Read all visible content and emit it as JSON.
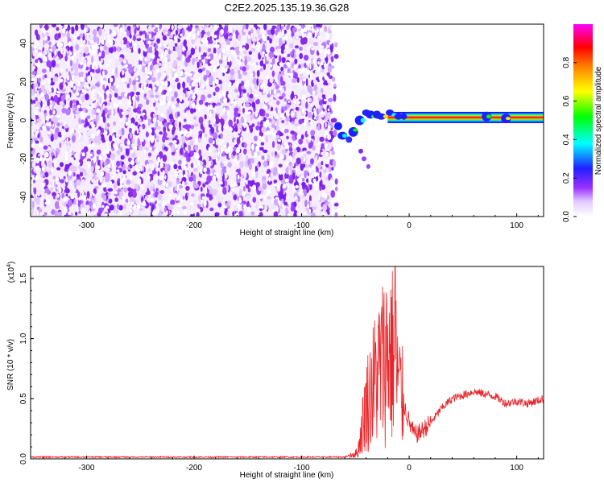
{
  "title": "C2E2.2025.135.19.36.G28",
  "chart_data": [
    {
      "type": "heatmap",
      "title": "C2E2.2025.135.19.36.G28",
      "xlabel": "Height of straight line (km)",
      "ylabel": "Frequency (Hz)",
      "xlim": [
        -352,
        125
      ],
      "ylim": [
        -50,
        50
      ],
      "x_ticks": [
        -300,
        -200,
        -100,
        0,
        100
      ],
      "y_ticks": [
        -40,
        -20,
        0,
        20,
        40
      ],
      "colorbar": {
        "label": "Normalized spectral amplitude",
        "range": [
          0,
          1
        ],
        "ticks": [
          "0.0",
          "0.2",
          "0.4",
          "0.6",
          "0.8"
        ],
        "colors": [
          "#ffffff",
          "#e6ccff",
          "#8a2be2",
          "#0000ff",
          "#00ffff",
          "#00ff00",
          "#ffff00",
          "#ff8000",
          "#ff0000",
          "#ff00ff"
        ]
      },
      "regions": [
        {
          "name": "noise",
          "x_range": [
            -352,
            -72
          ],
          "y_range": [
            -50,
            50
          ],
          "level": 0.1
        },
        {
          "name": "signal-band",
          "x_range": [
            -72,
            125
          ],
          "center_freq_hz": 1.5,
          "level": 0.9
        }
      ]
    },
    {
      "type": "line",
      "xlabel": "Height of straight line (km)",
      "ylabel": "SNR (10 * v/v)",
      "y_multiplier_label": "(x10",
      "y_multiplier_exp": "4",
      "y_multiplier_close": ")",
      "xlim": [
        -352,
        125
      ],
      "ylim": [
        0,
        1.6
      ],
      "x_ticks": [
        -300,
        -200,
        -100,
        0,
        100
      ],
      "y_ticks": [
        "0.0",
        "0.5",
        "1.0",
        "1.5"
      ],
      "color": "#e8262a",
      "keypoints": {
        "x": [
          -352,
          -60,
          -48,
          -40,
          -30,
          -20,
          -14,
          -8,
          0,
          5,
          10,
          20,
          30,
          40,
          60,
          80,
          90,
          100,
          110,
          125
        ],
        "y": [
          0.015,
          0.015,
          0.05,
          0.45,
          0.7,
          0.9,
          0.85,
          0.55,
          0.3,
          0.2,
          0.22,
          0.3,
          0.42,
          0.5,
          0.56,
          0.52,
          0.46,
          0.48,
          0.46,
          0.5
        ]
      },
      "peak": {
        "x": -13,
        "y": 1.6
      }
    }
  ]
}
